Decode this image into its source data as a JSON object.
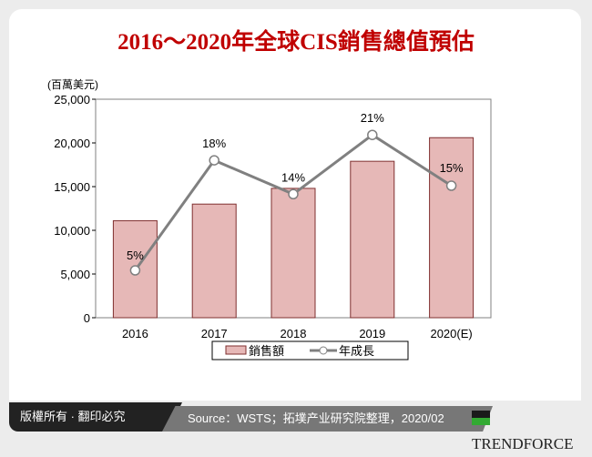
{
  "title": "2016～2020年全球CIS銷售總值預估",
  "footer": {
    "copyright": "版權所有 · 翻印必究",
    "source": "Source：WSTS；拓墣产业研究院整理，2020/02",
    "logo": "TRENDFORCE"
  },
  "chart_data": {
    "type": "bar+line",
    "ylabel": "(百萬美元)",
    "ylim": [
      0,
      25000
    ],
    "yticks": [
      "0",
      "5,000",
      "10,000",
      "15,000",
      "20,000",
      "25,000"
    ],
    "categories": [
      "2016",
      "2017",
      "2018",
      "2019",
      "2020(E)"
    ],
    "series": [
      {
        "name": "銷售額",
        "type": "bar",
        "color": "#e6b8b7",
        "values": [
          11100,
          13000,
          14800,
          17900,
          20600
        ]
      },
      {
        "name": "年成長",
        "type": "line",
        "color": "#808080",
        "values": [
          5,
          18,
          14,
          21,
          15
        ],
        "labels": [
          "5%",
          "18%",
          "14%",
          "21%",
          "15%"
        ]
      }
    ],
    "legend": "bottom"
  }
}
